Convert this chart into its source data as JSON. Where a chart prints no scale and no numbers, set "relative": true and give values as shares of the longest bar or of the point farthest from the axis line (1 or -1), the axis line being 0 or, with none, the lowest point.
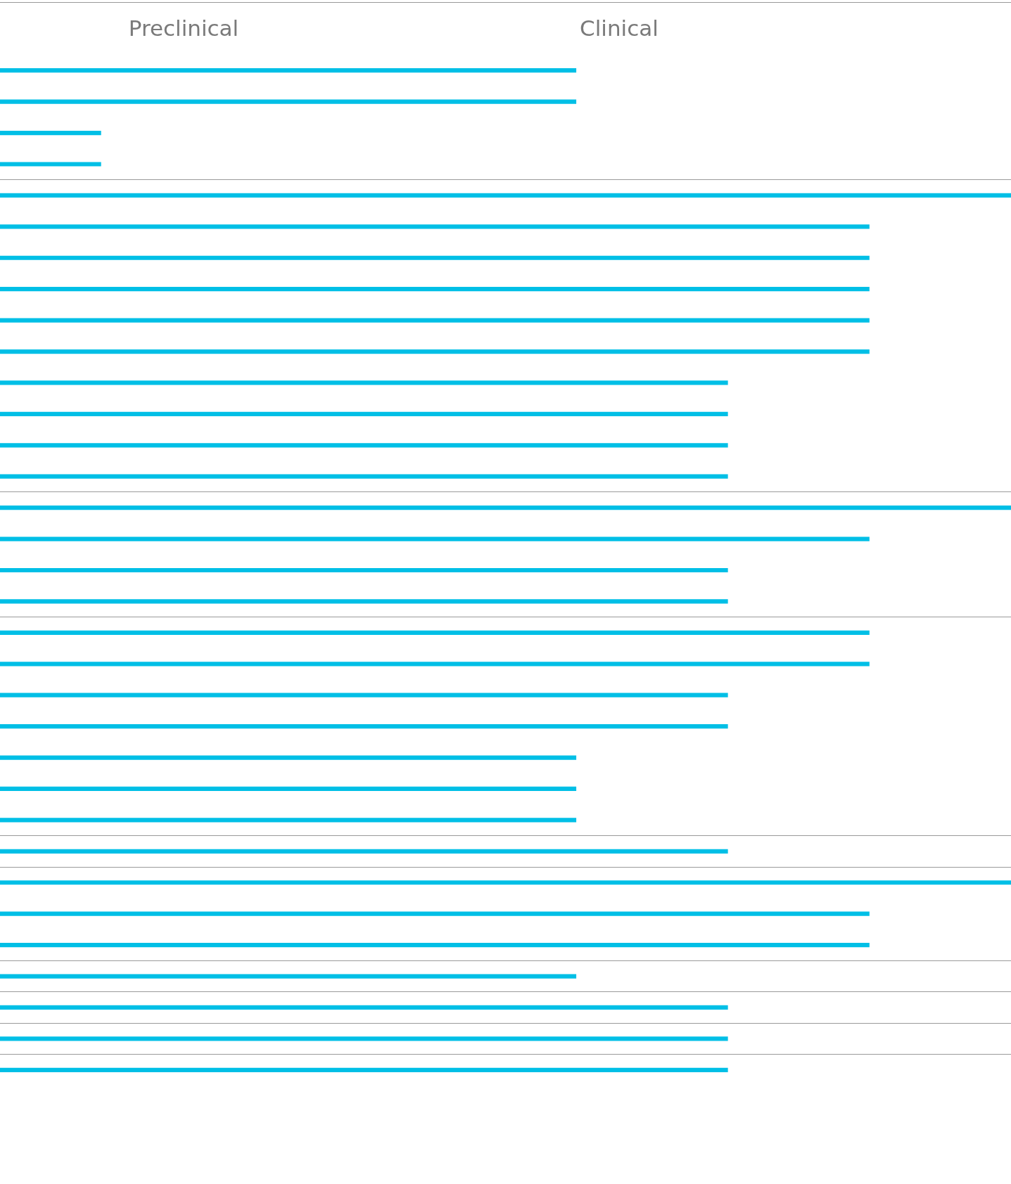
{
  "chart_data": {
    "type": "bar",
    "orientation": "horizontal",
    "relative": true,
    "categories": [
      null,
      null,
      null,
      null,
      null,
      null,
      null,
      null,
      null,
      null,
      null,
      null,
      null,
      null,
      null,
      null,
      null,
      null,
      null,
      null,
      null,
      null,
      null,
      null,
      null,
      null,
      null,
      null,
      null,
      null,
      null,
      null,
      null
    ],
    "values": [
      0.57,
      0.57,
      0.1,
      0.1,
      1,
      0.86,
      0.86,
      0.86,
      0.86,
      0.86,
      0.72,
      0.72,
      0.72,
      0.72,
      1,
      0.86,
      0.72,
      0.72,
      0.86,
      0.86,
      0.72,
      0.72,
      0.57,
      0.57,
      0.57,
      0.72,
      1,
      0.86,
      0.86,
      0.57,
      0.72,
      0.72,
      0.72
    ],
    "color": "#00bfe6",
    "annotations": [
      "Preclinical",
      "Clinical"
    ],
    "grid": "y",
    "legend": false,
    "tick_labels": false
  }
}
